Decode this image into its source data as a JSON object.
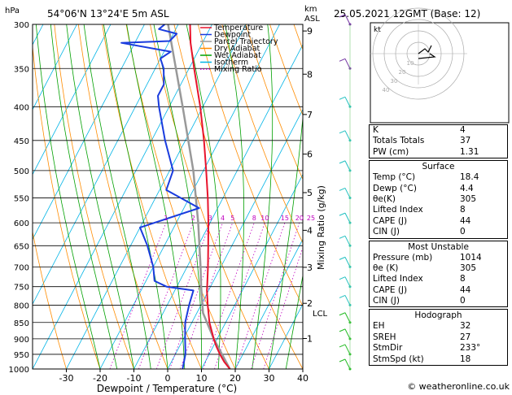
{
  "header": {
    "units_hpa": "hPa",
    "location": "54°06'N  13°24'E  5m  ASL",
    "units_km": "km",
    "units_asl": "ASL",
    "datetime": "25.05.2021  12GMT  (Base: 12)"
  },
  "chart_data": {
    "type": "skew-t",
    "xlabel": "Dewpoint / Temperature (°C)",
    "right_axis_label": "Mixing Ratio (g/kg)",
    "xlim": [
      -40,
      40
    ],
    "pressure_range": [
      1000,
      300
    ],
    "x_ticks": [
      -30,
      -20,
      -10,
      0,
      10,
      20,
      30,
      40
    ],
    "pressure_ticks": [
      300,
      350,
      400,
      450,
      500,
      550,
      600,
      650,
      700,
      750,
      800,
      850,
      900,
      950,
      1000
    ],
    "km_ticks": [
      {
        "label": "9",
        "p": 307
      },
      {
        "label": "8",
        "p": 357
      },
      {
        "label": "7",
        "p": 411
      },
      {
        "label": "6",
        "p": 472
      },
      {
        "label": "5",
        "p": 540
      },
      {
        "label": "4",
        "p": 616
      },
      {
        "label": "3",
        "p": 701
      },
      {
        "label": "2",
        "p": 795
      },
      {
        "label": "1",
        "p": 899
      }
    ],
    "lcl": {
      "label": "LCL",
      "p": 822
    },
    "mixing_ratio_labels": [
      "1",
      "2",
      "3",
      "4",
      "5",
      "8",
      "10",
      "15",
      "20",
      "25"
    ],
    "mixing_ratio_values": [
      1,
      2,
      3,
      4,
      5,
      8,
      10,
      15,
      20,
      25
    ],
    "legend": [
      {
        "name": "Temperature",
        "color": "#e8132c"
      },
      {
        "name": "Dewpoint",
        "color": "#1a3cde"
      },
      {
        "name": "Parcel Trajectory",
        "color": "#999999"
      },
      {
        "name": "Dry Adiabat",
        "color": "#ff8c00"
      },
      {
        "name": "Wet Adiabat",
        "color": "#00a000"
      },
      {
        "name": "Isotherm",
        "color": "#00b4e6"
      },
      {
        "name": "Mixing Ratio",
        "color": "#c000c0"
      }
    ],
    "temperature": [
      {
        "p": 1000,
        "t": 18.4
      },
      {
        "p": 975,
        "t": 15.6
      },
      {
        "p": 950,
        "t": 13.2
      },
      {
        "p": 925,
        "t": 11.0
      },
      {
        "p": 900,
        "t": 9.0
      },
      {
        "p": 850,
        "t": 5.2
      },
      {
        "p": 800,
        "t": 2.0
      },
      {
        "p": 760,
        "t": -0.5
      },
      {
        "p": 750,
        "t": -1.0
      },
      {
        "p": 700,
        "t": -3.8
      },
      {
        "p": 650,
        "t": -7.0
      },
      {
        "p": 600,
        "t": -10.5
      },
      {
        "p": 550,
        "t": -14.5
      },
      {
        "p": 500,
        "t": -19.2
      },
      {
        "p": 450,
        "t": -24.5
      },
      {
        "p": 400,
        "t": -30.8
      },
      {
        "p": 350,
        "t": -38.5
      },
      {
        "p": 320,
        "t": -43.5
      },
      {
        "p": 300,
        "t": -46.5
      }
    ],
    "dewpoint": [
      {
        "p": 1000,
        "t": 4.4
      },
      {
        "p": 950,
        "t": 3.0
      },
      {
        "p": 900,
        "t": 0.5
      },
      {
        "p": 850,
        "t": -2.0
      },
      {
        "p": 800,
        "t": -3.5
      },
      {
        "p": 760,
        "t": -4.5
      },
      {
        "p": 750,
        "t": -13.0
      },
      {
        "p": 735,
        "t": -17.5
      },
      {
        "p": 700,
        "t": -20.0
      },
      {
        "p": 650,
        "t": -25.0
      },
      {
        "p": 610,
        "t": -30.0
      },
      {
        "p": 570,
        "t": -15.5
      },
      {
        "p": 535,
        "t": -28.0
      },
      {
        "p": 500,
        "t": -29.0
      },
      {
        "p": 450,
        "t": -36.0
      },
      {
        "p": 400,
        "t": -43.0
      },
      {
        "p": 385,
        "t": -45.0
      },
      {
        "p": 370,
        "t": -45.0
      },
      {
        "p": 350,
        "t": -47.5
      },
      {
        "p": 338,
        "t": -50.0
      },
      {
        "p": 330,
        "t": -48.0
      },
      {
        "p": 320,
        "t": -64.0
      },
      {
        "p": 318,
        "t": -50.0
      },
      {
        "p": 310,
        "t": -49.0
      },
      {
        "p": 305,
        "t": -55.0
      },
      {
        "p": 300,
        "t": -54.0
      }
    ],
    "parcel": [
      {
        "p": 1000,
        "t": 18.4
      },
      {
        "p": 900,
        "t": 9.0
      },
      {
        "p": 822,
        "t": 1.8
      },
      {
        "p": 750,
        "t": -2.8
      },
      {
        "p": 700,
        "t": -6.0
      },
      {
        "p": 600,
        "t": -13.5
      },
      {
        "p": 500,
        "t": -23.0
      },
      {
        "p": 400,
        "t": -36.0
      },
      {
        "p": 300,
        "t": -53.0
      }
    ]
  },
  "hodograph": {
    "label": "kt",
    "ring_labels": [
      "10",
      "20",
      "30",
      "40"
    ]
  },
  "indices": {
    "rows": [
      {
        "label": "K",
        "value": "4"
      },
      {
        "label": "Totals Totals",
        "value": "37"
      },
      {
        "label": "PW (cm)",
        "value": "1.31"
      }
    ]
  },
  "surface": {
    "title": "Surface",
    "rows": [
      {
        "label": "Temp (°C)",
        "value": "18.4"
      },
      {
        "label": "Dewp (°C)",
        "value": "4.4"
      },
      {
        "label": "θe(K)",
        "value": "305"
      },
      {
        "label": "Lifted Index",
        "value": "8"
      },
      {
        "label": "CAPE (J)",
        "value": "44"
      },
      {
        "label": "CIN (J)",
        "value": "0"
      }
    ]
  },
  "most_unstable": {
    "title": "Most Unstable",
    "rows": [
      {
        "label": "Pressure (mb)",
        "value": "1014"
      },
      {
        "label": "θe (K)",
        "value": "305"
      },
      {
        "label": "Lifted Index",
        "value": "8"
      },
      {
        "label": "CAPE (J)",
        "value": "44"
      },
      {
        "label": "CIN (J)",
        "value": "0"
      }
    ]
  },
  "hodograph_stats": {
    "title": "Hodograph",
    "rows": [
      {
        "label": "EH",
        "value": "32"
      },
      {
        "label": "SREH",
        "value": "27"
      },
      {
        "label": "StmDir",
        "value": "233°"
      },
      {
        "label": "StmSpd (kt)",
        "value": "18"
      }
    ]
  },
  "footer": {
    "text": "© weatheronline.co.uk"
  }
}
